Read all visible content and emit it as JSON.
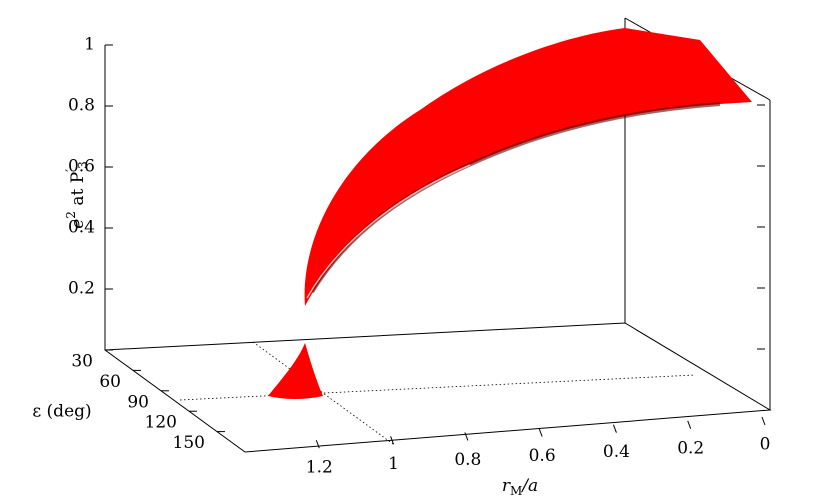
{
  "chart_data": {
    "type": "surface3d",
    "zlabel_parts": [
      "e",
      "2",
      " at P",
      "′",
      "3"
    ],
    "xlabel_parts": [
      "r",
      "M",
      "/a"
    ],
    "ylabel": "ε (deg)",
    "xlim": [
      0,
      1.4
    ],
    "xticks": [
      0,
      0.2,
      0.4,
      0.6,
      0.8,
      1,
      1.2
    ],
    "ylim": [
      30,
      180
    ],
    "yticks": [
      30,
      60,
      90,
      120,
      150
    ],
    "zlim": [
      0,
      1
    ],
    "zticks": [
      0.2,
      0.4,
      0.6,
      0.8,
      1
    ],
    "color": "#ff0000"
  }
}
